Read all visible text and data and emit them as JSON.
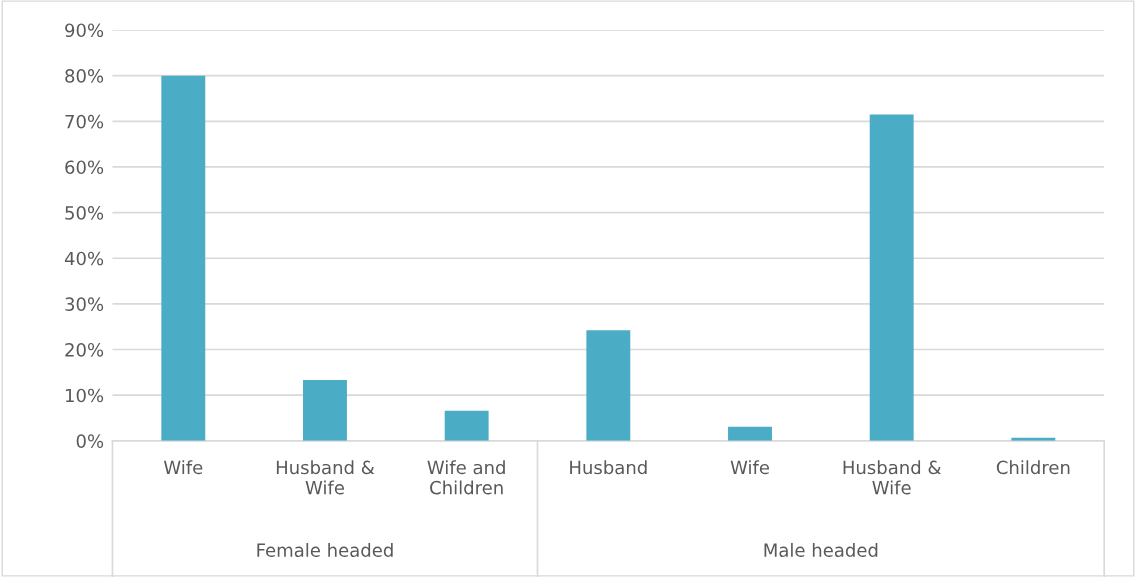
{
  "chart_data": {
    "type": "bar",
    "categories": [
      "Wife",
      "Husband & Wife",
      "Wife and Children",
      "Husband",
      "Wife",
      "Husband & Wife",
      "Children"
    ],
    "values": [
      80,
      13.3,
      6.6,
      24.2,
      3.1,
      71.5,
      0.7
    ],
    "color": "#4bacc6",
    "ylim": [
      0,
      90
    ],
    "yticks": [
      {
        "value": 0,
        "label": "0%"
      },
      {
        "value": 10,
        "label": "10%"
      },
      {
        "value": 20,
        "label": "20%"
      },
      {
        "value": 30,
        "label": "30%"
      },
      {
        "value": 40,
        "label": "40%"
      },
      {
        "value": 50,
        "label": "50%"
      },
      {
        "value": 60,
        "label": "60%"
      },
      {
        "value": 70,
        "label": "70%"
      },
      {
        "value": 80,
        "label": "80%"
      },
      {
        "value": 90,
        "label": "90%"
      }
    ],
    "grid": "y",
    "annotations": [
      "Female headed",
      "Male headed"
    ]
  }
}
